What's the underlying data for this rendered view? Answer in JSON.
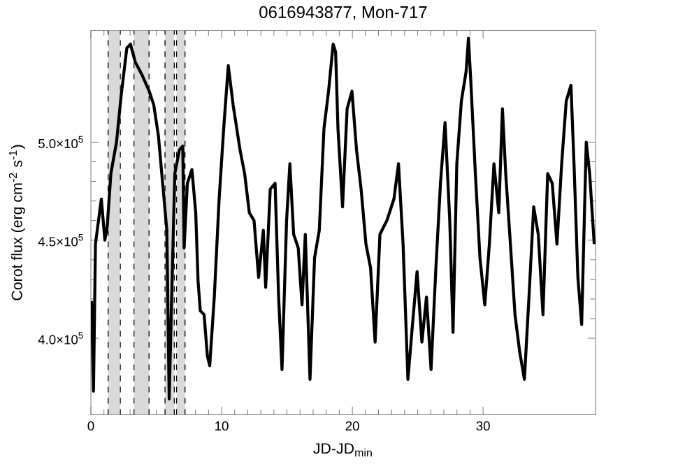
{
  "chart_data": {
    "type": "line",
    "title": "0616943877, Mon-717",
    "xlabel": "JD-JD$_{min}$",
    "ylabel": "Corot flux (erg cm$^{-2}$ s$^{-1}$)",
    "xlim": [
      0,
      38.6
    ],
    "ylim": [
      361000,
      557000
    ],
    "xticks": [
      0,
      10,
      20,
      30
    ],
    "yticks": [
      {
        "value": 400000,
        "label": "4.0×10$^{5}$"
      },
      {
        "value": 450000,
        "label": "4.5×10$^{5}$"
      },
      {
        "value": 500000,
        "label": "5.0×10$^{5}$"
      }
    ],
    "bands": [
      {
        "axis": "x",
        "from": 1.32,
        "to": 2.25,
        "color": "#d9d9d9"
      },
      {
        "axis": "x",
        "from": 3.3,
        "to": 4.45,
        "color": "#d9d9d9"
      },
      {
        "axis": "x",
        "from": 5.67,
        "to": 6.38,
        "color": "#d9d9d9"
      },
      {
        "axis": "x",
        "from": 6.55,
        "to": 7.2,
        "color": "#d9d9d9"
      }
    ],
    "series": [
      {
        "color": "#000000",
        "x": [
          0.05,
          0.2,
          0.35,
          0.8,
          1.07,
          1.25,
          1.53,
          1.96,
          2.32,
          2.75,
          3.03,
          3.39,
          3.93,
          4.46,
          4.81,
          5.17,
          5.53,
          5.81,
          5.99,
          6.2,
          6.42,
          6.77,
          7.03,
          7.13,
          7.38,
          7.73,
          8.02,
          8.2,
          8.37,
          8.66,
          8.91,
          9.09,
          9.44,
          9.81,
          10.16,
          10.51,
          10.88,
          11.41,
          11.76,
          12.12,
          12.48,
          12.83,
          13.19,
          13.37,
          13.72,
          14.09,
          14.36,
          14.62,
          14.97,
          15.22,
          15.51,
          15.86,
          16.15,
          16.4,
          16.76,
          17.11,
          17.47,
          17.83,
          18.18,
          18.53,
          18.72,
          18.9,
          19.25,
          19.6,
          19.97,
          20.32,
          20.67,
          21.04,
          21.39,
          21.74,
          22.11,
          22.64,
          23.18,
          23.53,
          23.88,
          24.25,
          24.6,
          24.95,
          25.32,
          25.67,
          26.02,
          26.39,
          26.74,
          27.09,
          27.45,
          27.7,
          27.99,
          28.34,
          28.7,
          28.88,
          29.06,
          29.41,
          29.76,
          30.13,
          30.48,
          30.83,
          31.2,
          31.48,
          31.73,
          32.09,
          32.44,
          32.8,
          33.16,
          33.51,
          33.87,
          34.22,
          34.58,
          34.94,
          35.29,
          35.65,
          36.01,
          36.36,
          36.72,
          36.97,
          37.25,
          37.54,
          37.89,
          38.15,
          38.5
        ],
        "values": [
          419000,
          373000,
          448000,
          471000,
          450000,
          457000,
          484000,
          500000,
          524000,
          548000,
          550000,
          541000,
          534000,
          526000,
          519000,
          503000,
          476000,
          455000,
          369000,
          426000,
          484000,
          496000,
          498000,
          446000,
          479000,
          486000,
          464000,
          429000,
          414000,
          412000,
          391000,
          386000,
          421000,
          471000,
          507000,
          539000,
          519000,
          496000,
          484000,
          464000,
          460000,
          431000,
          455000,
          426000,
          476000,
          479000,
          421000,
          384000,
          460000,
          489000,
          453000,
          446000,
          417000,
          453000,
          379000,
          441000,
          455000,
          507000,
          526000,
          550000,
          546000,
          507000,
          467000,
          517000,
          526000,
          496000,
          476000,
          448000,
          436000,
          398000,
          453000,
          460000,
          471000,
          489000,
          448000,
          379000,
          407000,
          434000,
          398000,
          421000,
          384000,
          436000,
          479000,
          510000,
          460000,
          403000,
          489000,
          521000,
          536000,
          553000,
          531000,
          484000,
          441000,
          417000,
          448000,
          489000,
          464000,
          517000,
          484000,
          448000,
          412000,
          393000,
          379000,
          421000,
          467000,
          453000,
          412000,
          484000,
          479000,
          448000,
          489000,
          521000,
          529000,
          486000,
          431000,
          407000,
          500000,
          484000,
          448000
        ]
      }
    ]
  }
}
